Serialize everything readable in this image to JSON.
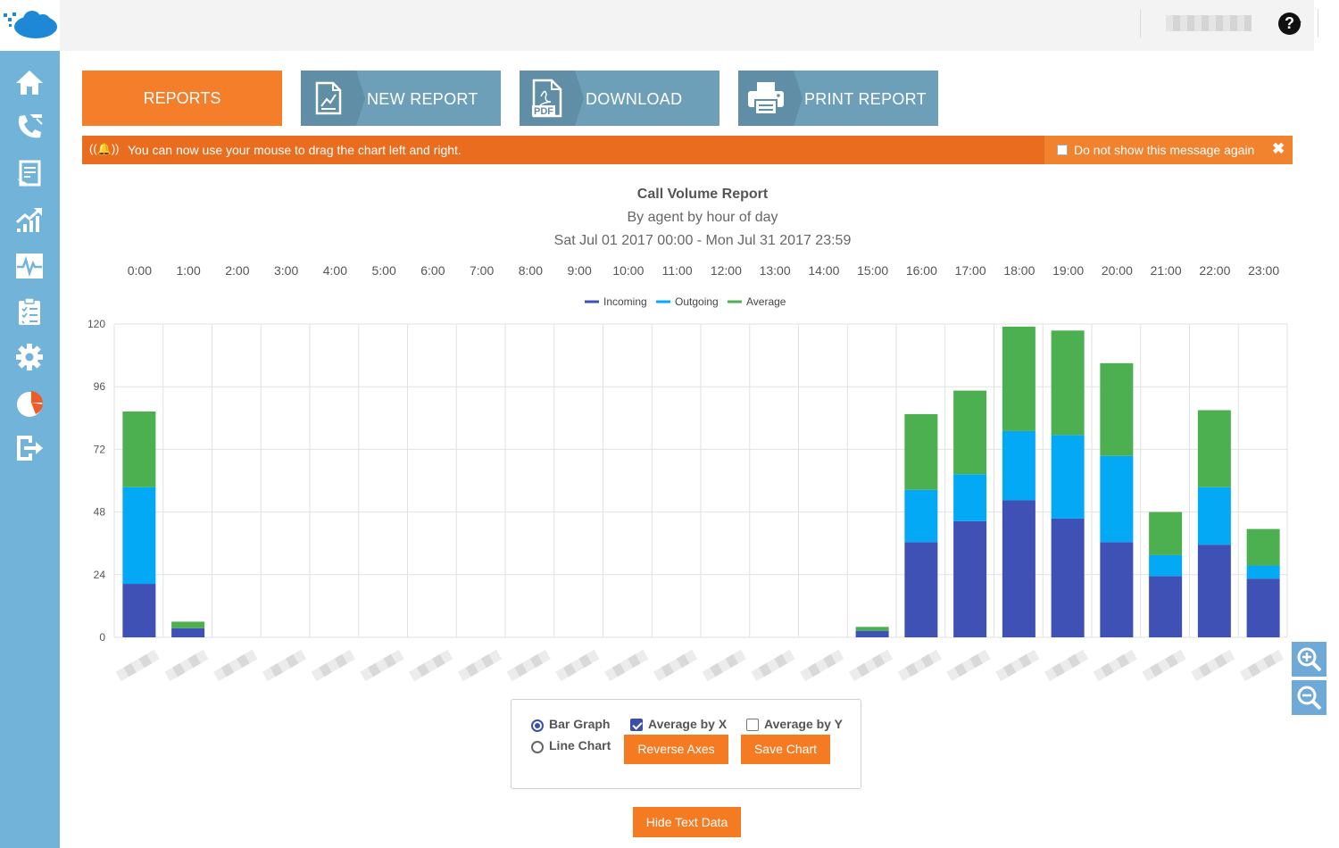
{
  "header": {
    "help_label": "?"
  },
  "toolbar": {
    "reports": "REPORTS",
    "new_report": "NEW REPORT",
    "download_pdf": "DOWNLOAD PDF",
    "pdf_icon_text": "PDF",
    "print_report": "PRINT REPORT"
  },
  "notice": {
    "message": "You can now use your mouse to drag the chart left and right.",
    "dont_show": "Do not show this message again",
    "close": "✖"
  },
  "colors": {
    "sidebar": "#72b4d9",
    "accent_orange": "#f57e2a",
    "button_gray_blue": "#6e9fb9",
    "incoming": "#3f51b5",
    "outgoing": "#03a9f4",
    "average": "#4caf50"
  },
  "sidebar_icons": [
    "home-icon",
    "phone-icon",
    "report-doc-icon",
    "trend-chart-icon",
    "pulse-icon",
    "checklist-icon",
    "gear-icon",
    "pie-chart-icon",
    "logout-icon"
  ],
  "chart_data": {
    "type": "bar",
    "stacked": true,
    "title": "Call Volume Report",
    "subtitle": "By agent by hour of day",
    "date_range": "Sat Jul 01 2017 00:00 - Mon Jul 31 2017 23:59",
    "categories": [
      "0:00",
      "1:00",
      "2:00",
      "3:00",
      "4:00",
      "5:00",
      "6:00",
      "7:00",
      "8:00",
      "9:00",
      "10:00",
      "11:00",
      "12:00",
      "13:00",
      "14:00",
      "15:00",
      "16:00",
      "17:00",
      "18:00",
      "19:00",
      "20:00",
      "21:00",
      "22:00",
      "23:00"
    ],
    "series": [
      {
        "name": "Incoming",
        "color": "#3f51b5",
        "values": [
          20.5,
          3.5,
          0,
          0,
          0,
          0,
          0,
          0,
          0,
          0,
          0,
          0,
          0,
          0,
          0,
          2.5,
          36.5,
          44.5,
          52.5,
          45.5,
          36.5,
          23.5,
          35.5,
          22.5
        ]
      },
      {
        "name": "Outgoing",
        "color": "#03a9f4",
        "values": [
          37,
          0,
          0,
          0,
          0,
          0,
          0,
          0,
          0,
          0,
          0,
          0,
          0,
          0,
          0,
          0,
          20,
          18,
          26.5,
          32,
          33,
          8,
          22,
          5
        ]
      },
      {
        "name": "Average",
        "color": "#4caf50",
        "values": [
          29,
          2.5,
          0,
          0,
          0,
          0,
          0,
          0,
          0,
          0,
          0,
          0,
          0,
          0,
          0,
          1.5,
          29,
          32,
          40,
          40,
          35.5,
          16.5,
          29.5,
          14
        ]
      }
    ],
    "ylim": [
      0,
      120
    ],
    "yticks": [
      0,
      24,
      48,
      72,
      96,
      120
    ],
    "x_axis_position": "top",
    "legend_position": "top-center",
    "grid": true
  },
  "controls": {
    "bar_graph": "Bar Graph",
    "line_chart": "Line Chart",
    "average_by_x": "Average by X",
    "average_by_y": "Average by Y",
    "reverse_axes": "Reverse Axes",
    "save_chart": "Save Chart",
    "hide_text_data": "Hide Text Data",
    "selected_chart_type": "Bar Graph",
    "average_by_x_checked": true,
    "average_by_y_checked": false
  }
}
